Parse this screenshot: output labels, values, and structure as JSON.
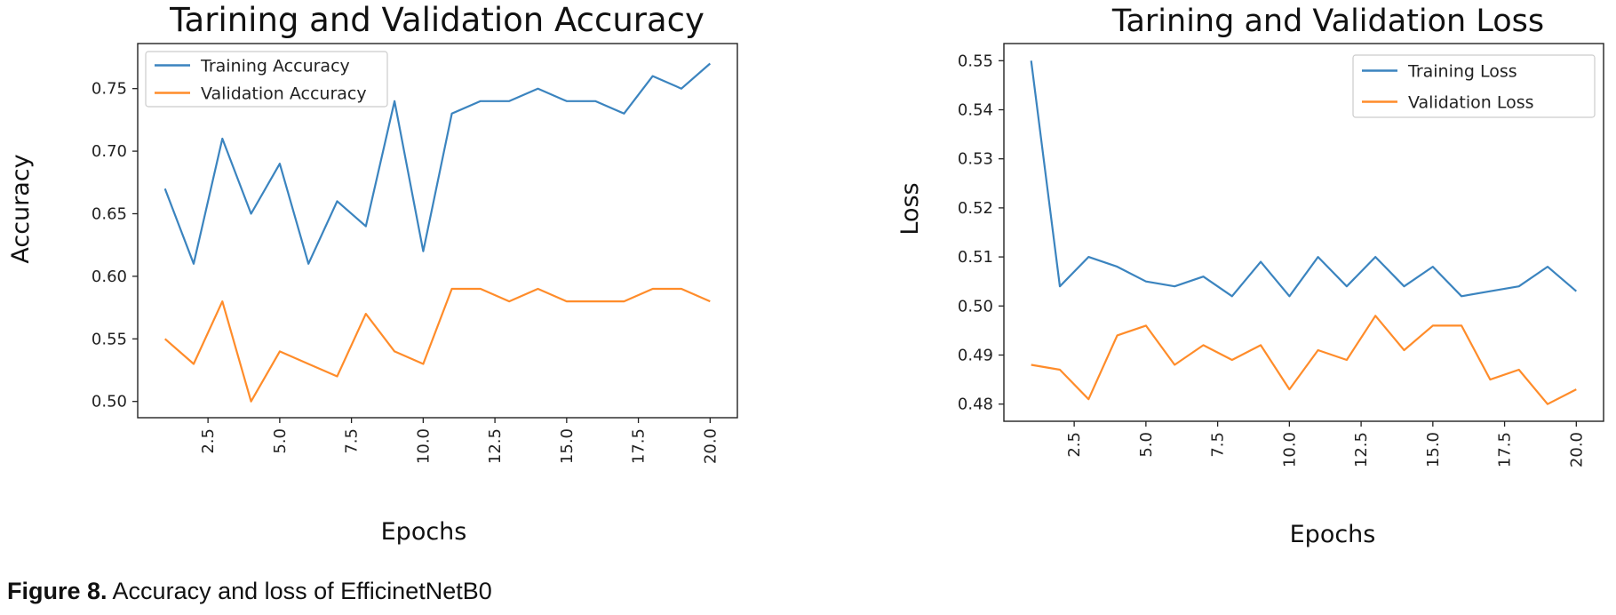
{
  "caption": {
    "label": "Figure 8.",
    "text": "Accuracy and loss of EfficinetNetB0"
  },
  "chart_data": [
    {
      "type": "line",
      "title": "Tarining and Validation Accuracy",
      "xlabel": "Epochs",
      "ylabel": "Accuracy",
      "x": [
        1,
        2,
        3,
        4,
        5,
        6,
        7,
        8,
        9,
        10,
        11,
        12,
        13,
        14,
        15,
        16,
        17,
        18,
        19,
        20
      ],
      "xticks": [
        "2.5",
        "5.0",
        "7.5",
        "10.0",
        "12.5",
        "15.0",
        "17.5",
        "20.0"
      ],
      "yticks": [
        "0.50",
        "0.55",
        "0.60",
        "0.65",
        "0.70",
        "0.75"
      ],
      "xlim": [
        0.05,
        20.95
      ],
      "ylim": [
        0.487,
        0.786
      ],
      "grid": false,
      "legend_position": "top-left",
      "series": [
        {
          "name": "Training Accuracy",
          "color": "#3b84bf",
          "values": [
            0.67,
            0.61,
            0.71,
            0.65,
            0.69,
            0.61,
            0.66,
            0.64,
            0.74,
            0.62,
            0.73,
            0.74,
            0.74,
            0.75,
            0.74,
            0.74,
            0.73,
            0.76,
            0.75,
            0.77
          ]
        },
        {
          "name": "Validation Accuracy",
          "color": "#ff8c2a",
          "values": [
            0.55,
            0.53,
            0.58,
            0.5,
            0.54,
            0.53,
            0.52,
            0.57,
            0.54,
            0.53,
            0.59,
            0.59,
            0.58,
            0.59,
            0.58,
            0.58,
            0.58,
            0.59,
            0.59,
            0.58
          ]
        }
      ]
    },
    {
      "type": "line",
      "title": "Tarining and Validation Loss",
      "xlabel": "Epochs",
      "ylabel": "Loss",
      "x": [
        1,
        2,
        3,
        4,
        5,
        6,
        7,
        8,
        9,
        10,
        11,
        12,
        13,
        14,
        15,
        16,
        17,
        18,
        19,
        20
      ],
      "xticks": [
        "2.5",
        "5.0",
        "7.5",
        "10.0",
        "12.5",
        "15.0",
        "17.5",
        "20.0"
      ],
      "yticks": [
        "0.48",
        "0.49",
        "0.50",
        "0.51",
        "0.52",
        "0.53",
        "0.54",
        "0.55"
      ],
      "xlim": [
        0.05,
        20.95
      ],
      "ylim": [
        0.4765,
        0.5535
      ],
      "grid": false,
      "legend_position": "top-right",
      "series": [
        {
          "name": "Training Loss",
          "color": "#3b84bf",
          "values": [
            0.55,
            0.504,
            0.51,
            0.508,
            0.505,
            0.504,
            0.506,
            0.502,
            0.509,
            0.502,
            0.51,
            0.504,
            0.51,
            0.504,
            0.508,
            0.502,
            0.503,
            0.504,
            0.508,
            0.503
          ]
        },
        {
          "name": "Validation Loss",
          "color": "#ff8c2a",
          "values": [
            0.488,
            0.487,
            0.481,
            0.494,
            0.496,
            0.488,
            0.492,
            0.489,
            0.492,
            0.483,
            0.491,
            0.489,
            0.498,
            0.491,
            0.496,
            0.496,
            0.485,
            0.487,
            0.48,
            0.483
          ]
        }
      ]
    }
  ]
}
